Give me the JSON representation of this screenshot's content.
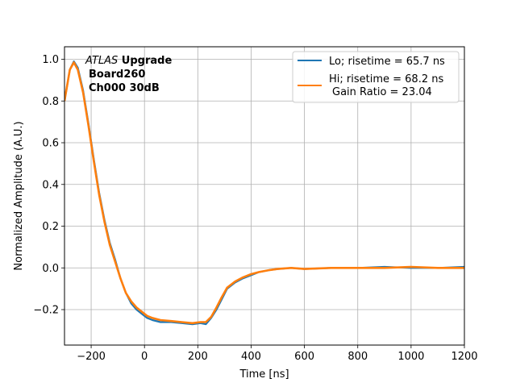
{
  "chart_data": {
    "type": "line",
    "title": "",
    "xlabel": "Time [ns]",
    "ylabel": "Normalized Amplitude (A.U.)",
    "xlim": [
      -300,
      1200
    ],
    "ylim": [
      -0.37,
      1.06
    ],
    "grid": true,
    "legend_position": "top-right",
    "x_ticks": [
      -200,
      0,
      200,
      400,
      600,
      800,
      1000,
      1200
    ],
    "x_tick_labels": [
      "−200",
      "0",
      "200",
      "400",
      "600",
      "800",
      "1000",
      "1200"
    ],
    "y_ticks": [
      -0.2,
      0.0,
      0.2,
      0.4,
      0.6,
      0.8,
      1.0
    ],
    "y_tick_labels": [
      "−0.2",
      "0.0",
      "0.2",
      "0.4",
      "0.6",
      "0.8",
      "1.0"
    ],
    "annotation": {
      "line1_italic": "ATLAS",
      "line1_bold": " Upgrade",
      "line2": "Board260",
      "line3": "Ch000 30dB"
    },
    "series": [
      {
        "name": "Lo; risetime = 65.7 ns",
        "color": "#1f77b4",
        "x": [
          -300,
          -280,
          -265,
          -250,
          -230,
          -210,
          -190,
          -170,
          -150,
          -130,
          -110,
          -90,
          -70,
          -50,
          -30,
          -10,
          10,
          30,
          60,
          100,
          140,
          180,
          210,
          230,
          250,
          270,
          290,
          310,
          340,
          370,
          400,
          430,
          470,
          500,
          550,
          600,
          700,
          800,
          900,
          1000,
          1100,
          1200
        ],
        "y": [
          0.8,
          0.95,
          0.99,
          0.96,
          0.85,
          0.69,
          0.52,
          0.36,
          0.23,
          0.12,
          0.04,
          -0.05,
          -0.12,
          -0.17,
          -0.2,
          -0.22,
          -0.24,
          -0.25,
          -0.26,
          -0.26,
          -0.265,
          -0.27,
          -0.265,
          -0.27,
          -0.24,
          -0.2,
          -0.15,
          -0.1,
          -0.07,
          -0.05,
          -0.035,
          -0.02,
          -0.01,
          -0.005,
          0.0,
          -0.005,
          0.0,
          0.0,
          0.005,
          0.0,
          0.0,
          0.005
        ]
      },
      {
        "name": "Hi; risetime = 68.2 ns",
        "name_line2": "Gain Ratio = 23.04",
        "color": "#ff7f0e",
        "x": [
          -300,
          -280,
          -265,
          -250,
          -230,
          -210,
          -190,
          -170,
          -150,
          -130,
          -110,
          -90,
          -70,
          -50,
          -30,
          -10,
          10,
          30,
          60,
          100,
          140,
          180,
          210,
          230,
          250,
          270,
          290,
          310,
          340,
          370,
          400,
          430,
          470,
          500,
          550,
          600,
          700,
          800,
          900,
          1000,
          1100,
          1200
        ],
        "y": [
          0.8,
          0.95,
          0.985,
          0.95,
          0.84,
          0.68,
          0.51,
          0.35,
          0.22,
          0.11,
          0.03,
          -0.05,
          -0.12,
          -0.16,
          -0.19,
          -0.21,
          -0.23,
          -0.24,
          -0.25,
          -0.255,
          -0.26,
          -0.265,
          -0.26,
          -0.26,
          -0.235,
          -0.19,
          -0.14,
          -0.095,
          -0.065,
          -0.045,
          -0.03,
          -0.02,
          -0.01,
          -0.005,
          0.0,
          -0.005,
          0.0,
          0.0,
          0.0,
          0.005,
          0.0,
          0.0
        ]
      }
    ]
  }
}
